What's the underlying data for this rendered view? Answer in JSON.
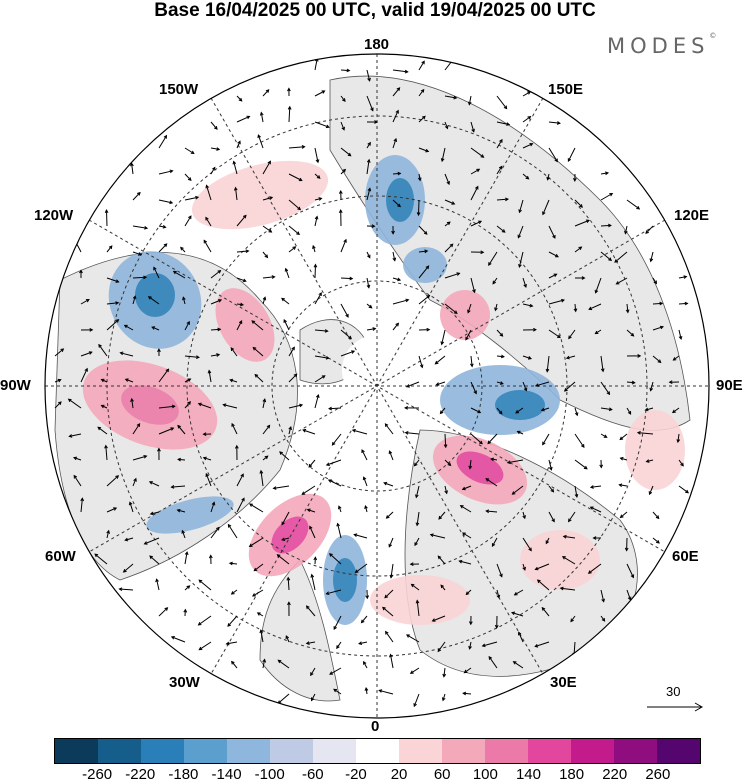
{
  "title": "Base 16/04/2025 00 UTC, valid 19/04/2025 00 UTC",
  "brand": {
    "text": "MODES",
    "mark": "©"
  },
  "longitude_labels": {
    "top": "180",
    "bottom": "0",
    "left": "90W",
    "right": "90E",
    "upper_left_1": "150W",
    "upper_left_2": "120W",
    "upper_right_1": "150E",
    "upper_right_2": "120E",
    "lower_left_1": "60W",
    "lower_left_2": "30W",
    "lower_right_1": "60E",
    "lower_right_2": "30E"
  },
  "vector_reference": {
    "value": "30",
    "icon": "right-arrow-icon"
  },
  "colorbar": {
    "colors": [
      "#0b3a5b",
      "#155e8c",
      "#2b7fb8",
      "#5a9fcd",
      "#8fb6dc",
      "#bfcbe4",
      "#e6e6f2",
      "#ffffff",
      "#fad4d6",
      "#f4a9ba",
      "#ec7aa8",
      "#e3479d",
      "#c41b8c",
      "#8f0d7e",
      "#54066e"
    ],
    "tick_labels": [
      "-260",
      "-220",
      "-180",
      "-140",
      "-100",
      "-60",
      "-20",
      "20",
      "60",
      "100",
      "140",
      "180",
      "220",
      "260"
    ]
  },
  "colors": {
    "land_fill": "#e8e8e8",
    "coastline": "#555555",
    "grid": "#333333",
    "negative": "#5a9fcd",
    "positive": "#ec7aa8"
  }
}
